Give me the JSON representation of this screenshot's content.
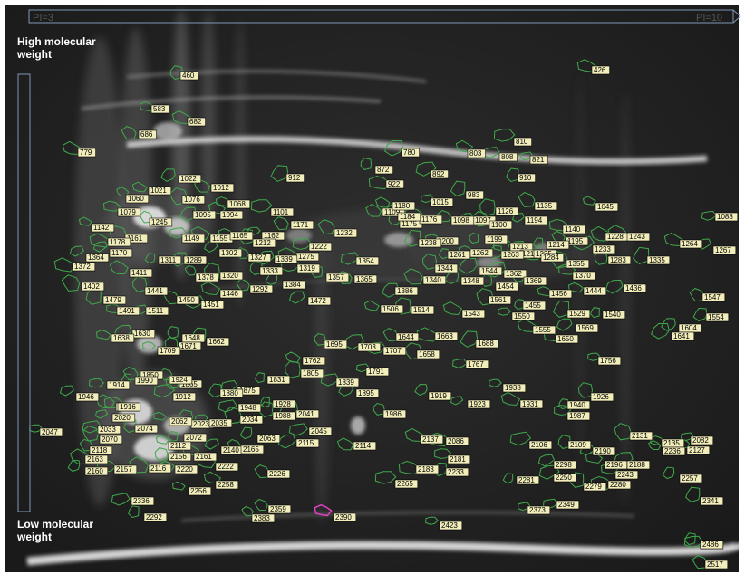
{
  "header": {
    "ph_start": "PI=3",
    "ph_end": "PI=10"
  },
  "axis": {
    "high_label": "High molecular weight",
    "high_line1": "High molecular",
    "high_line2": "weight",
    "low_label": "Low molecular weight",
    "low_line1": "Low molecular",
    "low_line2": "weight"
  },
  "spot_labels": [
    "426",
    "460",
    "583",
    "682",
    "686",
    "779",
    "780",
    "803",
    "808",
    "810",
    "821",
    "872",
    "892",
    "910",
    "912",
    "922",
    "983",
    "1012",
    "1015",
    "1021",
    "1022",
    "1045",
    "1060",
    "1068",
    "1076",
    "1079",
    "1088",
    "1094",
    "1095",
    "1097",
    "1098",
    "1100",
    "1101",
    "1109",
    "1126",
    "1135",
    "1140",
    "1142",
    "1149",
    "1155",
    "1161",
    "1162",
    "1165",
    "1170",
    "1171",
    "1175",
    "1176",
    "1178",
    "1180",
    "1184",
    "1194",
    "1195",
    "1199",
    "1200",
    "1212",
    "1213",
    "1214",
    "1218",
    "1222",
    "1228",
    "1232",
    "1233",
    "1235",
    "1238",
    "1243",
    "1245",
    "1261",
    "1262",
    "1263",
    "1264",
    "1267",
    "1275",
    "1283",
    "1284",
    "1289",
    "1292",
    "1302",
    "1311",
    "1319",
    "1320",
    "1327",
    "1333",
    "1335",
    "1339",
    "1340",
    "1344",
    "1348",
    "1354",
    "1355",
    "1357",
    "1362",
    "1364",
    "1365",
    "1369",
    "1370",
    "1372",
    "1378",
    "1384",
    "1386",
    "1402",
    "1411",
    "1436",
    "1441",
    "1444",
    "1446",
    "1450",
    "1451",
    "1454",
    "1455",
    "1456",
    "1472",
    "1479",
    "1491",
    "1506",
    "1511",
    "1514",
    "1529",
    "1540",
    "1543",
    "1544",
    "1547",
    "1550",
    "1554",
    "1555",
    "1561",
    "1569",
    "1604",
    "1630",
    "1638",
    "1641",
    "1644",
    "1648",
    "1650",
    "1658",
    "1662",
    "1663",
    "1671",
    "1688",
    "1695",
    "1703",
    "1707",
    "1709",
    "1756",
    "1762",
    "1767",
    "1791",
    "1805",
    "1831",
    "1839",
    "1850",
    "1865",
    "1875",
    "1880",
    "1895",
    "1896",
    "1912",
    "1914",
    "1916",
    "1919",
    "1923",
    "1924",
    "1926",
    "1928",
    "1931",
    "1938",
    "1940",
    "1946",
    "1948",
    "1986",
    "1987",
    "1988",
    "1990",
    "2020",
    "2023",
    "2033",
    "2034",
    "2035",
    "2041",
    "2045",
    "2047",
    "2062",
    "2063",
    "2070",
    "2072",
    "2074",
    "2082",
    "2086",
    "2106",
    "2109",
    "2112",
    "2114",
    "2115",
    "2116",
    "2118",
    "2127",
    "2131",
    "2135",
    "2137",
    "2140",
    "2156",
    "2157",
    "2160",
    "2161",
    "2163",
    "2165",
    "2181",
    "2183",
    "2188",
    "2190",
    "2196",
    "2220",
    "2222",
    "2226",
    "2233",
    "2236",
    "2243",
    "2250",
    "2256",
    "2257",
    "2258",
    "2265",
    "2279",
    "2280",
    "2281",
    "2292",
    "2298",
    "2336",
    "2341",
    "2349",
    "2359",
    "2373",
    "2383",
    "2386",
    "2390",
    "2423",
    "2486",
    "2517"
  ],
  "colors": {
    "page_background": "#ffffff",
    "gel_background": "#262626",
    "label_fill": "#f2eebc",
    "label_border": "#000000",
    "spot_outline": "#3fa94b",
    "highlight_outline": "#e040c0",
    "axis_line": "#7e97b6"
  },
  "highlighted_spot": "2390"
}
